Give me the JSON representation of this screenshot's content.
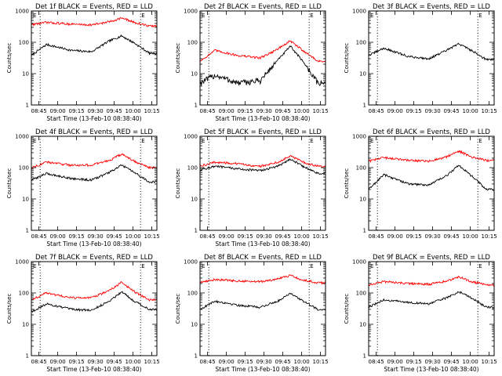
{
  "chart_data": [
    {
      "type": "line",
      "title": "Det 1f BLACK = Events, RED = LLD",
      "xlabel": "Start Time (13-Feb-10 08:38:40)",
      "ylabel": "Counts/sec",
      "y_scale": "log",
      "ylim": [
        1,
        1000
      ],
      "x_tick_labels": [
        "08:45",
        "09:00",
        "09:15",
        "09:30",
        "09:45",
        "10:00",
        "10:15"
      ],
      "y_tick_labels": [
        "1",
        "10",
        "100",
        "1000"
      ],
      "corner_labels": [
        "E",
        "E"
      ],
      "series": [
        {
          "color": "#000000",
          "key": [
            [
              0,
              38
            ],
            [
              12,
              85
            ],
            [
              32,
              55
            ],
            [
              48,
              50
            ],
            [
              62,
              110
            ],
            [
              72,
              160
            ],
            [
              82,
              95
            ],
            [
              94,
              45
            ]
          ]
        },
        {
          "color": "#ff0000",
          "key": [
            [
              0,
              370
            ],
            [
              12,
              430
            ],
            [
              32,
              380
            ],
            [
              48,
              360
            ],
            [
              62,
              450
            ],
            [
              72,
              600
            ],
            [
              82,
              430
            ],
            [
              94,
              330
            ]
          ]
        }
      ]
    },
    {
      "type": "line",
      "title": "Det 2f BLACK = Events, RED = LLD",
      "xlabel": "Start Time (13-Feb-10 08:38:40)",
      "ylabel": "Counts/sec",
      "y_scale": "log",
      "ylim": [
        1,
        1000
      ],
      "x_tick_labels": [
        "08:45",
        "09:00",
        "09:15",
        "09:30",
        "09:45",
        "10:00",
        "10:15"
      ],
      "y_tick_labels": [
        "1",
        "10",
        "100",
        "1000"
      ],
      "corner_labels": [
        "E",
        "E"
      ],
      "series": [
        {
          "color": "#000000",
          "key": [
            [
              0,
              5
            ],
            [
              12,
              9
            ],
            [
              30,
              5
            ],
            [
              48,
              6
            ],
            [
              60,
              22
            ],
            [
              72,
              75
            ],
            [
              82,
              25
            ],
            [
              94,
              5
            ]
          ]
        },
        {
          "color": "#ff0000",
          "key": [
            [
              0,
              25
            ],
            [
              12,
              55
            ],
            [
              30,
              38
            ],
            [
              48,
              32
            ],
            [
              60,
              55
            ],
            [
              72,
              110
            ],
            [
              82,
              55
            ],
            [
              94,
              25
            ]
          ]
        }
      ]
    },
    {
      "type": "line",
      "title": "Det 3f BLACK = Events, RED = LLD",
      "xlabel": "",
      "ylabel": "Counts/sec",
      "y_scale": "log",
      "ylim": [
        1,
        1000
      ],
      "x_tick_labels": [
        "08:45",
        "09:00",
        "09:15",
        "09:30",
        "09:45",
        "10:00",
        "10:15"
      ],
      "y_tick_labels": [
        "1",
        "10",
        "100",
        "1000"
      ],
      "corner_labels": [
        "E",
        "E"
      ],
      "series": [
        {
          "color": "#000000",
          "key": [
            [
              0,
              38
            ],
            [
              12,
              65
            ],
            [
              32,
              35
            ],
            [
              48,
              30
            ],
            [
              62,
              55
            ],
            [
              72,
              90
            ],
            [
              82,
              55
            ],
            [
              94,
              28
            ]
          ]
        }
      ]
    },
    {
      "type": "line",
      "title": "Det 4f BLACK = Events, RED = LLD",
      "xlabel": "Start Time (13-Feb-10 08:38:40)",
      "ylabel": "Counts/sec",
      "y_scale": "log",
      "ylim": [
        1,
        1000
      ],
      "x_tick_labels": [
        "08:45",
        "09:00",
        "09:15",
        "09:30",
        "09:45",
        "10:00",
        "10:15"
      ],
      "y_tick_labels": [
        "1",
        "10",
        "100",
        "1000"
      ],
      "corner_labels": [
        "E",
        "E"
      ],
      "series": [
        {
          "color": "#000000",
          "key": [
            [
              0,
              40
            ],
            [
              12,
              65
            ],
            [
              32,
              45
            ],
            [
              48,
              40
            ],
            [
              62,
              70
            ],
            [
              72,
              120
            ],
            [
              82,
              70
            ],
            [
              94,
              35
            ]
          ]
        },
        {
          "color": "#ff0000",
          "key": [
            [
              0,
              100
            ],
            [
              12,
              150
            ],
            [
              32,
              120
            ],
            [
              48,
              120
            ],
            [
              62,
              170
            ],
            [
              72,
              270
            ],
            [
              82,
              160
            ],
            [
              94,
              100
            ]
          ]
        }
      ]
    },
    {
      "type": "line",
      "title": "Det 5f BLACK = Events, RED = LLD",
      "xlabel": "Start Time (13-Feb-10 08:38:40)",
      "ylabel": "Counts/sec",
      "y_scale": "log",
      "ylim": [
        1,
        1000
      ],
      "x_tick_labels": [
        "08:45",
        "09:00",
        "09:15",
        "09:30",
        "09:45",
        "10:00",
        "10:15"
      ],
      "y_tick_labels": [
        "1",
        "10",
        "100",
        "1000"
      ],
      "corner_labels": [
        "E",
        "E"
      ],
      "series": [
        {
          "color": "#000000",
          "key": [
            [
              0,
              85
            ],
            [
              12,
              110
            ],
            [
              32,
              90
            ],
            [
              48,
              80
            ],
            [
              62,
              110
            ],
            [
              72,
              190
            ],
            [
              82,
              110
            ],
            [
              94,
              65
            ]
          ]
        },
        {
          "color": "#ff0000",
          "key": [
            [
              0,
              110
            ],
            [
              12,
              150
            ],
            [
              32,
              130
            ],
            [
              48,
              110
            ],
            [
              62,
              150
            ],
            [
              72,
              240
            ],
            [
              82,
              150
            ],
            [
              94,
              110
            ]
          ]
        }
      ]
    },
    {
      "type": "line",
      "title": "Det 6f BLACK = Events, RED = LLD",
      "xlabel": "",
      "ylabel": "Counts/sec",
      "y_scale": "log",
      "ylim": [
        1,
        1000
      ],
      "x_tick_labels": [
        "08:45",
        "09:00",
        "09:15",
        "09:30",
        "09:45",
        "10:00",
        "10:15"
      ],
      "y_tick_labels": [
        "1",
        "10",
        "100",
        "1000"
      ],
      "corner_labels": [
        "E",
        "E"
      ],
      "series": [
        {
          "color": "#000000",
          "key": [
            [
              0,
              20
            ],
            [
              12,
              60
            ],
            [
              32,
              30
            ],
            [
              48,
              28
            ],
            [
              62,
              55
            ],
            [
              72,
              120
            ],
            [
              82,
              55
            ],
            [
              94,
              20
            ]
          ]
        },
        {
          "color": "#ff0000",
          "key": [
            [
              0,
              160
            ],
            [
              12,
              210
            ],
            [
              32,
              170
            ],
            [
              48,
              160
            ],
            [
              62,
              220
            ],
            [
              72,
              340
            ],
            [
              82,
              220
            ],
            [
              94,
              170
            ]
          ]
        }
      ]
    },
    {
      "type": "line",
      "title": "Det 7f BLACK = Events, RED = LLD",
      "xlabel": "Start Time (13-Feb-10 08:38:40)",
      "ylabel": "Counts/sec",
      "y_scale": "log",
      "ylim": [
        1,
        1000
      ],
      "x_tick_labels": [
        "08:45",
        "09:00",
        "09:15",
        "09:30",
        "09:45",
        "10:00",
        "10:15"
      ],
      "y_tick_labels": [
        "1",
        "10",
        "100",
        "1000"
      ],
      "corner_labels": [
        "E",
        "E"
      ],
      "series": [
        {
          "color": "#000000",
          "key": [
            [
              0,
              25
            ],
            [
              12,
              45
            ],
            [
              32,
              30
            ],
            [
              48,
              28
            ],
            [
              62,
              55
            ],
            [
              72,
              110
            ],
            [
              82,
              55
            ],
            [
              94,
              30
            ]
          ]
        },
        {
          "color": "#ff0000",
          "key": [
            [
              0,
              60
            ],
            [
              12,
              100
            ],
            [
              32,
              70
            ],
            [
              48,
              70
            ],
            [
              62,
              120
            ],
            [
              72,
              220
            ],
            [
              82,
              110
            ],
            [
              94,
              60
            ]
          ]
        }
      ]
    },
    {
      "type": "line",
      "title": "Det 8f BLACK = Events, RED = LLD",
      "xlabel": "Start Time (13-Feb-10 08:38:40)",
      "ylabel": "Counts/sec",
      "y_scale": "log",
      "ylim": [
        1,
        1000
      ],
      "x_tick_labels": [
        "08:45",
        "09:00",
        "09:15",
        "09:30",
        "09:45",
        "10:00",
        "10:15"
      ],
      "y_tick_labels": [
        "1",
        "10",
        "100",
        "1000"
      ],
      "corner_labels": [
        "E",
        "E"
      ],
      "series": [
        {
          "color": "#000000",
          "key": [
            [
              0,
              30
            ],
            [
              12,
              55
            ],
            [
              32,
              40
            ],
            [
              48,
              35
            ],
            [
              62,
              55
            ],
            [
              72,
              100
            ],
            [
              82,
              55
            ],
            [
              94,
              30
            ]
          ]
        },
        {
          "color": "#ff0000",
          "key": [
            [
              0,
              220
            ],
            [
              12,
              270
            ],
            [
              32,
              240
            ],
            [
              48,
              230
            ],
            [
              62,
              280
            ],
            [
              72,
              360
            ],
            [
              82,
              260
            ],
            [
              94,
              210
            ]
          ]
        }
      ]
    },
    {
      "type": "line",
      "title": "Det 9f BLACK = Events, RED = LLD",
      "xlabel": "Start Time (13-Feb-10 08:38:40)",
      "ylabel": "Counts/sec",
      "y_scale": "log",
      "ylim": [
        1,
        1000
      ],
      "x_tick_labels": [
        "08:45",
        "09:00",
        "09:15",
        "09:30",
        "09:45",
        "10:00",
        "10:15"
      ],
      "y_tick_labels": [
        "1",
        "10",
        "100",
        "1000"
      ],
      "corner_labels": [
        "E",
        "E"
      ],
      "series": [
        {
          "color": "#000000",
          "key": [
            [
              0,
              35
            ],
            [
              12,
              60
            ],
            [
              32,
              50
            ],
            [
              48,
              45
            ],
            [
              62,
              70
            ],
            [
              72,
              110
            ],
            [
              82,
              70
            ],
            [
              94,
              35
            ]
          ]
        },
        {
          "color": "#ff0000",
          "key": [
            [
              0,
              180
            ],
            [
              12,
              230
            ],
            [
              32,
              200
            ],
            [
              48,
              190
            ],
            [
              62,
              240
            ],
            [
              72,
              330
            ],
            [
              82,
              230
            ],
            [
              94,
              180
            ]
          ]
        }
      ]
    }
  ]
}
